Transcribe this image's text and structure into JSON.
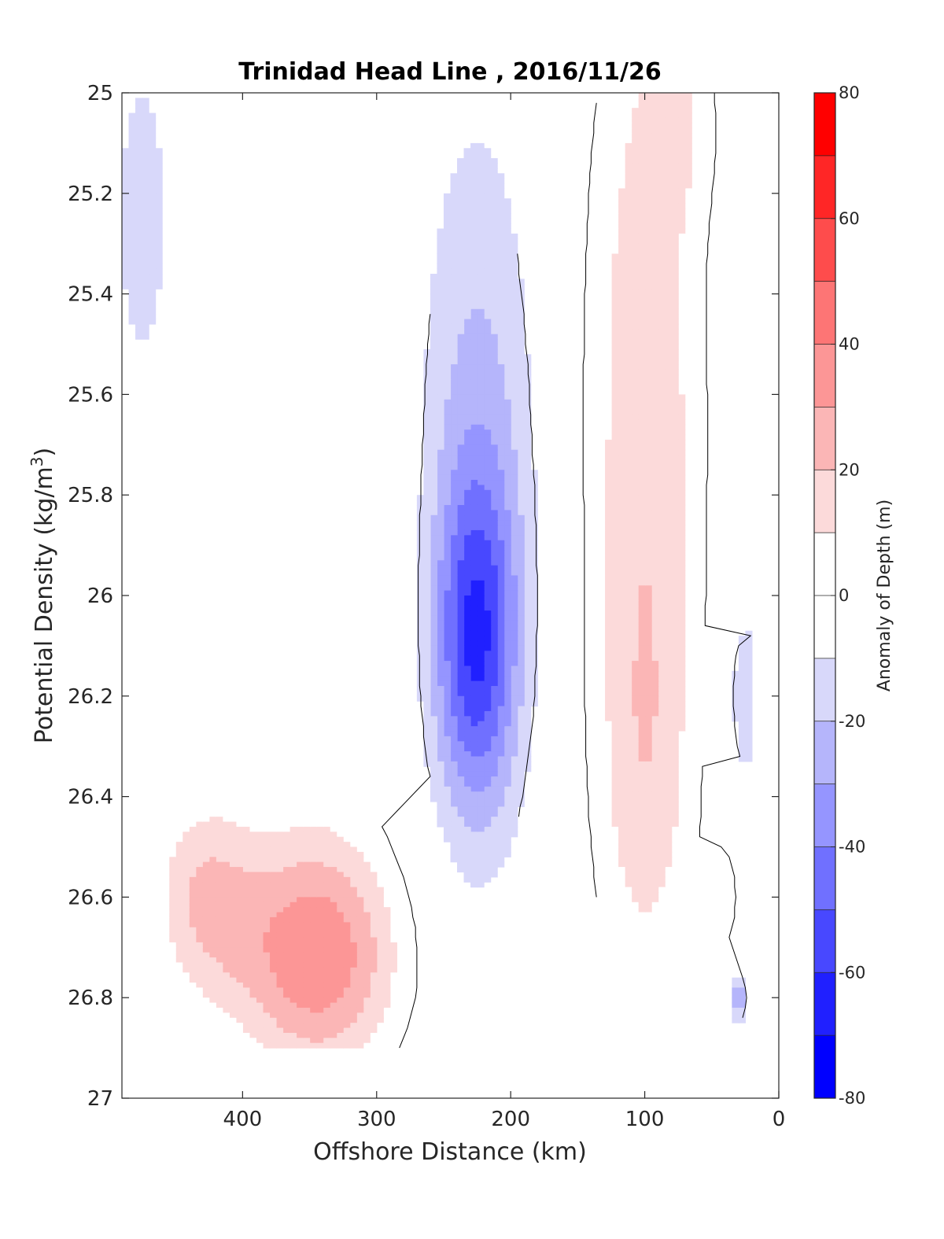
{
  "chart_data": {
    "type": "heatmap",
    "title": "Trinidad Head Line , 2016/11/26",
    "xlabel": "Offshore Distance (km)",
    "ylabel_main": "Potential Density (kg/m",
    "ylabel_sup": "3",
    "ylabel_close": ")",
    "colorbar_label": "Anomaly of Depth (m)",
    "xlim": [
      490,
      0
    ],
    "ylim": [
      25,
      27
    ],
    "x_reversed": true,
    "y_reversed": true,
    "x_ticks": [
      "400",
      "300",
      "200",
      "100",
      "0"
    ],
    "x_tick_values": [
      400,
      300,
      200,
      100,
      0
    ],
    "y_ticks": [
      "25",
      "25.2",
      "25.4",
      "25.6",
      "25.8",
      "26",
      "26.2",
      "26.4",
      "26.6",
      "26.8",
      "27"
    ],
    "y_tick_values": [
      25,
      25.2,
      25.4,
      25.6,
      25.8,
      26,
      26.2,
      26.4,
      26.6,
      26.8,
      27
    ],
    "colorbar_ticks": [
      "80",
      "60",
      "40",
      "20",
      "0",
      "-20",
      "-40",
      "-60",
      "-80"
    ],
    "colorbar_tick_values": [
      80,
      60,
      40,
      20,
      0,
      -20,
      -40,
      -60,
      -80
    ],
    "contour_levels": [
      -80,
      -70,
      -60,
      -50,
      -40,
      -30,
      -20,
      -10,
      10,
      20,
      30,
      40,
      50,
      60,
      70,
      80
    ],
    "data_extent": {
      "x": [
        490,
        20
      ],
      "density": [
        25,
        26.9
      ]
    },
    "grid": false,
    "colormap": "blue-white-red",
    "colorbar_colors": [
      "#0000ff",
      "#2020ff",
      "#4848ff",
      "#7070ff",
      "#9595ff",
      "#b5b5fb",
      "#d8d8fa",
      "#ffffff",
      "#ffffff",
      "#fcdada",
      "#fbb6b6",
      "#fc9696",
      "#fd7575",
      "#fe4c4c",
      "#ff2626",
      "#ff0000"
    ],
    "features": [
      {
        "name": "coastal-negative-core",
        "x": 228,
        "density": 26.22,
        "value": -65
      },
      {
        "name": "midshelf-positive-core",
        "x": 110,
        "density": 26.1,
        "value": 35
      },
      {
        "name": "deep-positive-core",
        "x": 340,
        "density": 26.72,
        "value": 55
      },
      {
        "name": "offshore-negative-patch",
        "x": 470,
        "density": 25.3,
        "value": -15
      },
      {
        "name": "nearshore-negative-patch",
        "x": 25,
        "density": 26.2,
        "value": -20
      }
    ]
  }
}
